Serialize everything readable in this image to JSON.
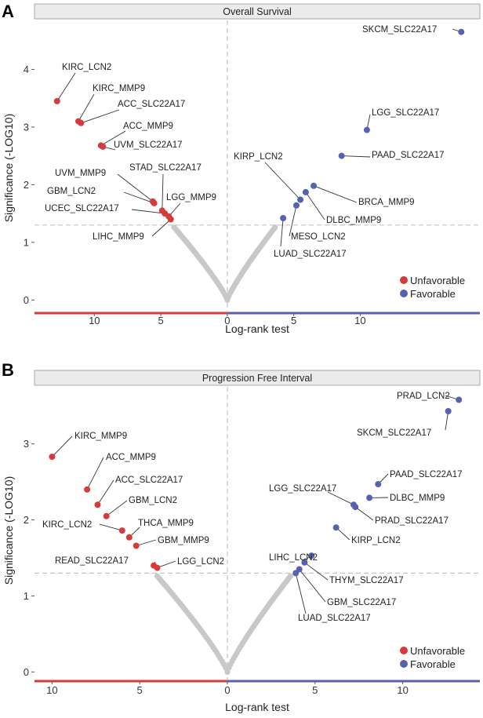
{
  "colors": {
    "unfavorable": "#d63a3a",
    "favorable": "#5661b0",
    "insignificant": "#c8c8c8",
    "strip_bg": "#ebebeb",
    "strip_border": "#a8a8a8",
    "threshold_line": "#c4c4c4"
  },
  "chart_data": [
    {
      "panel": "A",
      "type": "scatter",
      "title": "Overall Survival",
      "xlabel": "Log-rank test",
      "ylabel": "Significance (-LOG10)",
      "x_range": [
        -14.5,
        19
      ],
      "ylim": [
        -0.2,
        4.85
      ],
      "x_ticks": [
        -10,
        -5,
        0,
        5,
        10
      ],
      "x_tick_labels": [
        "10",
        "5",
        "0",
        "5",
        "10"
      ],
      "y_ticks": [
        0,
        1,
        2,
        3,
        4
      ],
      "y_tick_labels": [
        "0",
        "1",
        "2",
        "3",
        "4"
      ],
      "threshold": 1.3,
      "legend": {
        "position": "bottom-right",
        "items": [
          "Unfavorable",
          "Favorable"
        ]
      },
      "points": [
        {
          "name": "SKCM_SLC22A17",
          "x": 17.6,
          "y": 4.65,
          "group": "favorable",
          "label": "SKCM_SLC22A17"
        },
        {
          "name": "KIRC_LCN2",
          "x": -12.8,
          "y": 3.45,
          "group": "unfavorable",
          "label": "KIRC_LCN2"
        },
        {
          "name": "KIRC_MMP9",
          "x": -11.2,
          "y": 3.1,
          "group": "unfavorable",
          "label": "KIRC_MMP9"
        },
        {
          "name": "ACC_SLC22A17",
          "x": -11.0,
          "y": 3.07,
          "group": "unfavorable",
          "label": "ACC_SLC22A17"
        },
        {
          "name": "ACC_MMP9",
          "x": -9.5,
          "y": 2.68,
          "group": "unfavorable",
          "label": "ACC_MMP9"
        },
        {
          "name": "UVM_SLC22A17",
          "x": -9.35,
          "y": 2.66,
          "group": "unfavorable",
          "label": "UVM_SLC22A17"
        },
        {
          "name": "LGG_SLC22A17",
          "x": 10.5,
          "y": 2.95,
          "group": "favorable",
          "label": "LGG_SLC22A17"
        },
        {
          "name": "PAAD_SLC22A17",
          "x": 8.6,
          "y": 2.5,
          "group": "favorable",
          "label": "PAAD_SLC22A17"
        },
        {
          "name": "UVM_MMP9",
          "x": -5.6,
          "y": 1.71,
          "group": "unfavorable",
          "label": "UVM_MMP9"
        },
        {
          "name": "GBM_LCN2",
          "x": -5.5,
          "y": 1.68,
          "group": "unfavorable",
          "label": "GBM_LCN2"
        },
        {
          "name": "STAD_SLC22A17",
          "x": -4.9,
          "y": 1.55,
          "group": "unfavorable",
          "label": "STAD_SLC22A17"
        },
        {
          "name": "UCEC_SLC22A17",
          "x": -4.7,
          "y": 1.5,
          "group": "unfavorable",
          "label": "UCEC_SLC22A17"
        },
        {
          "name": "LGG_MMP9",
          "x": -4.4,
          "y": 1.45,
          "group": "unfavorable",
          "label": "LGG_MMP9"
        },
        {
          "name": "LIHC_MMP9",
          "x": -4.25,
          "y": 1.4,
          "group": "unfavorable",
          "label": "LIHC_MMP9"
        },
        {
          "name": "BRCA_MMP9",
          "x": 6.5,
          "y": 1.98,
          "group": "favorable",
          "label": "BRCA_MMP9"
        },
        {
          "name": "DLBC_MMP9",
          "x": 5.9,
          "y": 1.87,
          "group": "favorable",
          "label": "DLBC_MMP9"
        },
        {
          "name": "KIRP_LCN2",
          "x": 5.5,
          "y": 1.74,
          "group": "favorable",
          "label": "KIRP_LCN2"
        },
        {
          "name": "MESO_LCN2",
          "x": 5.2,
          "y": 1.64,
          "group": "favorable",
          "label": "MESO_LCN2"
        },
        {
          "name": "LUAD_SLC22A17",
          "x": 4.2,
          "y": 1.42,
          "group": "favorable",
          "label": "LUAD_SLC22A17"
        }
      ]
    },
    {
      "panel": "B",
      "type": "scatter",
      "title": "Progression Free Interval",
      "xlabel": "Log-rank test",
      "ylabel": "Significance (-LOG10)",
      "x_range": [
        -11,
        14.4
      ],
      "ylim": [
        -0.1,
        3.75
      ],
      "x_ticks": [
        -10,
        -5,
        0,
        5,
        10
      ],
      "x_tick_labels": [
        "10",
        "5",
        "0",
        "5",
        "10"
      ],
      "y_ticks": [
        0,
        1,
        2,
        3
      ],
      "y_tick_labels": [
        "0",
        "1",
        "2",
        "3"
      ],
      "threshold": 1.3,
      "legend": {
        "position": "bottom-right",
        "items": [
          "Unfavorable",
          "Favorable"
        ]
      },
      "points": [
        {
          "name": "PRAD_LCN2",
          "x": 13.2,
          "y": 3.58,
          "group": "favorable",
          "label": "PRAD_LCN2"
        },
        {
          "name": "SKCM_SLC22A17",
          "x": 12.6,
          "y": 3.43,
          "group": "favorable",
          "label": "SKCM_SLC22A17"
        },
        {
          "name": "KIRC_MMP9",
          "x": -10.0,
          "y": 2.83,
          "group": "unfavorable",
          "label": "KIRC_MMP9"
        },
        {
          "name": "ACC_MMP9",
          "x": -8.0,
          "y": 2.4,
          "group": "unfavorable",
          "label": "ACC_MMP9"
        },
        {
          "name": "ACC_SLC22A17",
          "x": -7.4,
          "y": 2.2,
          "group": "unfavorable",
          "label": "ACC_SLC22A17"
        },
        {
          "name": "GBM_LCN2",
          "x": -6.9,
          "y": 2.05,
          "group": "unfavorable",
          "label": "GBM_LCN2"
        },
        {
          "name": "KIRC_LCN2",
          "x": -6.0,
          "y": 1.86,
          "group": "unfavorable",
          "label": "KIRC_LCN2"
        },
        {
          "name": "THCA_MMP9",
          "x": -5.6,
          "y": 1.77,
          "group": "unfavorable",
          "label": "THCA_MMP9"
        },
        {
          "name": "GBM_MMP9",
          "x": -5.2,
          "y": 1.66,
          "group": "unfavorable",
          "label": "GBM_MMP9"
        },
        {
          "name": "READ_SLC22A17",
          "x": -4.2,
          "y": 1.4,
          "group": "unfavorable",
          "label": "READ_SLC22A17"
        },
        {
          "name": "LGG_LCN2",
          "x": -4.0,
          "y": 1.37,
          "group": "unfavorable",
          "label": "LGG_LCN2"
        },
        {
          "name": "PAAD_SLC22A17",
          "x": 8.6,
          "y": 2.47,
          "group": "favorable",
          "label": "PAAD_SLC22A17"
        },
        {
          "name": "DLBC_MMP9",
          "x": 8.1,
          "y": 2.29,
          "group": "favorable",
          "label": "DLBC_MMP9"
        },
        {
          "name": "LGG_SLC22A17",
          "x": 7.2,
          "y": 2.2,
          "group": "favorable",
          "label": "LGG_SLC22A17"
        },
        {
          "name": "PRAD_SLC22A17",
          "x": 7.3,
          "y": 2.17,
          "group": "favorable",
          "label": "PRAD_SLC22A17"
        },
        {
          "name": "KIRP_LCN2",
          "x": 6.2,
          "y": 1.9,
          "group": "favorable",
          "label": "KIRP_LCN2"
        },
        {
          "name": "LIHC_LCN2",
          "x": 4.8,
          "y": 1.53,
          "group": "favorable",
          "label": "LIHC_LCN2"
        },
        {
          "name": "THYM_SLC22A17",
          "x": 4.4,
          "y": 1.44,
          "group": "favorable",
          "label": "THYM_SLC22A17"
        },
        {
          "name": "GBM_SLC22A17",
          "x": 4.1,
          "y": 1.35,
          "group": "favorable",
          "label": "GBM_SLC22A17"
        },
        {
          "name": "LUAD_SLC22A17",
          "x": 3.9,
          "y": 1.3,
          "group": "favorable",
          "label": "LUAD_SLC22A17"
        }
      ]
    }
  ]
}
